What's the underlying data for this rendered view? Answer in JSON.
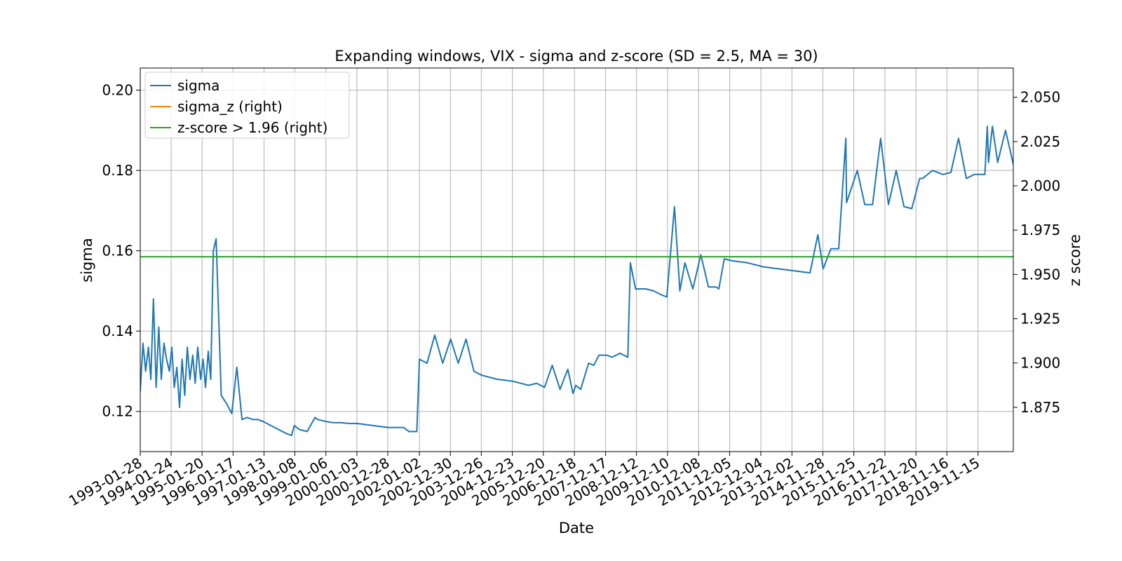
{
  "chart_data": {
    "type": "line",
    "title": "Expanding windows, VIX - sigma and z-score (SD = 2.5, MA = 30)",
    "xlabel": "Date",
    "ylabel": "sigma",
    "ylabel_right": "z score",
    "x_tick_labels": [
      "1993-01-28",
      "1994-01-24",
      "1995-01-20",
      "1996-01-17",
      "1997-01-13",
      "1998-01-08",
      "1999-01-06",
      "2000-01-03",
      "2000-12-28",
      "2002-01-02",
      "2002-12-30",
      "2003-12-26",
      "2004-12-23",
      "2005-12-20",
      "2006-12-18",
      "2007-12-17",
      "2008-12-12",
      "2009-12-10",
      "2010-12-08",
      "2011-12-05",
      "2012-12-04",
      "2013-12-02",
      "2014-11-28",
      "2015-11-25",
      "2016-11-22",
      "2017-11-20",
      "2018-11-16",
      "2019-11-15"
    ],
    "xlim": [
      "1993-01-28",
      "2020-12-31"
    ],
    "y_left_ticks": [
      "0.12",
      "0.14",
      "0.16",
      "0.18",
      "0.20"
    ],
    "y_left_lim": [
      0.11,
      0.2055
    ],
    "y_right_ticks": [
      "1.875",
      "1.900",
      "1.925",
      "1.950",
      "1.975",
      "2.000",
      "2.025",
      "2.050"
    ],
    "y_right_lim": [
      1.85,
      2.0665
    ],
    "grid": true,
    "legend_position": "top-left",
    "series": [
      {
        "name": "sigma",
        "axis": "left",
        "color": "#1f77b4",
        "x": [
          "1993-01-28",
          "1993-03-01",
          "1993-04-01",
          "1993-05-03",
          "1993-06-01",
          "1993-07-01",
          "1993-08-02",
          "1993-09-01",
          "1993-10-01",
          "1993-11-01",
          "1993-12-01",
          "1994-01-03",
          "1994-02-01",
          "1994-03-01",
          "1994-04-01",
          "1994-05-02",
          "1994-06-01",
          "1994-07-01",
          "1994-08-01",
          "1994-09-01",
          "1994-10-03",
          "1994-11-01",
          "1994-12-01",
          "1995-01-03",
          "1995-02-01",
          "1995-03-01",
          "1995-04-03",
          "1995-05-01",
          "1995-06-01",
          "1995-07-03",
          "1995-09-01",
          "1995-11-01",
          "1996-01-02",
          "1996-03-01",
          "1996-05-01",
          "1996-07-01",
          "1996-09-03",
          "1996-11-01",
          "1997-01-02",
          "1997-04-01",
          "1997-07-01",
          "1997-10-01",
          "1997-12-01",
          "1998-01-02",
          "1998-03-02",
          "1998-06-01",
          "1998-09-01",
          "1998-10-01",
          "1999-01-04",
          "1999-04-01",
          "1999-07-01",
          "1999-10-01",
          "2000-01-03",
          "2000-07-03",
          "2001-01-02",
          "2001-07-02",
          "2001-09-04",
          "2001-12-03",
          "2002-01-02",
          "2002-04-01",
          "2002-07-01",
          "2002-10-01",
          "2003-01-02",
          "2003-04-01",
          "2003-07-01",
          "2003-10-01",
          "2004-01-02",
          "2004-07-01",
          "2005-01-03",
          "2005-07-01",
          "2005-10-03",
          "2006-01-03",
          "2006-04-03",
          "2006-07-03",
          "2006-10-02",
          "2006-12-01",
          "2007-01-03",
          "2007-03-01",
          "2007-06-01",
          "2007-08-01",
          "2007-10-01",
          "2008-01-02",
          "2008-03-03",
          "2008-06-02",
          "2008-09-02",
          "2008-10-01",
          "2008-12-01",
          "2009-04-01",
          "2009-07-01",
          "2009-10-01",
          "2009-12-01",
          "2010-03-01",
          "2010-05-03",
          "2010-07-01",
          "2010-10-01",
          "2011-01-03",
          "2011-04-01",
          "2011-07-01",
          "2011-08-01",
          "2011-10-03",
          "2012-01-03",
          "2012-07-02",
          "2013-01-02",
          "2013-07-01",
          "2014-01-02",
          "2014-07-01",
          "2014-10-01",
          "2014-12-01",
          "2015-03-02",
          "2015-06-01",
          "2015-08-24",
          "2015-09-01",
          "2016-01-04",
          "2016-04-01",
          "2016-07-01",
          "2016-10-03",
          "2017-01-03",
          "2017-04-03",
          "2017-07-03",
          "2017-10-02",
          "2018-01-02",
          "2018-02-05",
          "2018-06-01",
          "2018-10-01",
          "2019-01-02",
          "2019-04-01",
          "2019-07-01",
          "2019-10-01",
          "2020-01-02",
          "2020-02-03",
          "2020-03-02",
          "2020-03-16",
          "2020-05-01",
          "2020-07-01",
          "2020-10-01",
          "2020-12-31"
        ],
        "y": [
          0.125,
          0.137,
          0.13,
          0.136,
          0.128,
          0.148,
          0.126,
          0.141,
          0.128,
          0.137,
          0.133,
          0.13,
          0.136,
          0.126,
          0.131,
          0.121,
          0.133,
          0.124,
          0.136,
          0.128,
          0.134,
          0.127,
          0.136,
          0.128,
          0.133,
          0.126,
          0.135,
          0.128,
          0.16,
          0.163,
          0.124,
          0.122,
          0.1195,
          0.131,
          0.118,
          0.1185,
          0.118,
          0.118,
          0.1175,
          0.1165,
          0.1155,
          0.1145,
          0.114,
          0.1165,
          0.1155,
          0.115,
          0.1185,
          0.118,
          0.1175,
          0.1172,
          0.1172,
          0.117,
          0.117,
          0.1165,
          0.116,
          0.116,
          0.115,
          0.115,
          0.133,
          0.132,
          0.139,
          0.132,
          0.138,
          0.132,
          0.138,
          0.13,
          0.129,
          0.128,
          0.1275,
          0.1265,
          0.127,
          0.126,
          0.1315,
          0.1255,
          0.1305,
          0.1245,
          0.1265,
          0.1255,
          0.132,
          0.1315,
          0.134,
          0.134,
          0.1335,
          0.1345,
          0.1335,
          0.157,
          0.1505,
          0.1505,
          0.15,
          0.149,
          0.1485,
          0.171,
          0.15,
          0.157,
          0.1505,
          0.159,
          0.151,
          0.151,
          0.1505,
          0.158,
          0.1575,
          0.157,
          0.156,
          0.1555,
          0.155,
          0.1545,
          0.164,
          0.1555,
          0.1605,
          0.1605,
          0.188,
          0.172,
          0.18,
          0.1715,
          0.1715,
          0.188,
          0.1715,
          0.18,
          0.171,
          0.1705,
          0.178,
          0.178,
          0.18,
          0.179,
          0.1795,
          0.188,
          0.178,
          0.179,
          0.179,
          0.179,
          0.191,
          0.182,
          0.191,
          0.182,
          0.19,
          0.1815
        ]
      },
      {
        "name": "sigma_z (right)",
        "axis": "right",
        "color": "#ff7f0e",
        "x": [],
        "y": []
      },
      {
        "name": "z-score > 1.96 (right)",
        "axis": "right",
        "color": "#2ca02c",
        "x": [
          "1993-01-28",
          "2020-12-31"
        ],
        "y": [
          1.96,
          1.96
        ]
      }
    ]
  }
}
